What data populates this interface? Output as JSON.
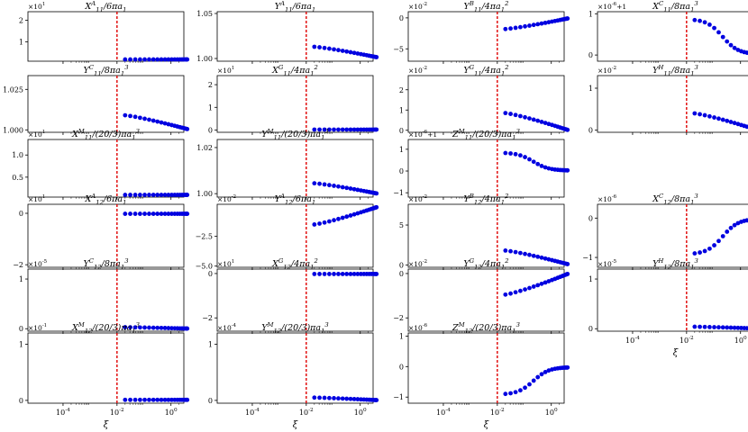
{
  "figure": {
    "xlabel": "ξ",
    "x_ticklabels": [
      "10^{-4}",
      "10^{-2}",
      "10^{0}"
    ],
    "x_tick_values": [
      0.0001,
      0.01,
      1
    ],
    "xlim": [
      5e-06,
      3
    ],
    "x_scale": "log",
    "vline": {
      "x": 0.01,
      "color": "#e00000",
      "style": "dashed"
    },
    "marker_color": "#0000e0"
  },
  "chart_data": [
    {
      "type": "scatter",
      "id": "XA11",
      "title": "X^{A}_{11}/6πa_{1}",
      "multiplier": "×10^{1}",
      "ylim": [
        0.1,
        2.4
      ],
      "yticks": [
        [
          1,
          "1"
        ],
        [
          2,
          "2"
        ]
      ],
      "shape": "flat",
      "level": 0.18,
      "x": [
        0.02,
        4
      ]
    },
    {
      "type": "scatter",
      "id": "YA11",
      "title": "Y^{A}_{11}/6πa_{1}",
      "multiplier": "",
      "ylim": [
        0.997,
        1.052
      ],
      "yticks": [
        [
          1.0,
          "1.00"
        ],
        [
          1.05,
          "1.05"
        ]
      ],
      "shape": "dec",
      "y0": 1.013,
      "y1": 1.0015,
      "x": [
        0.02,
        4
      ]
    },
    {
      "type": "scatter",
      "id": "YB11",
      "title": "Y^{B}_{11}/4πa_{1}^{2}",
      "multiplier": "×10^{-2}",
      "ylim": [
        -7,
        1
      ],
      "yticks": [
        [
          -5,
          "−5"
        ],
        [
          0,
          "0"
        ]
      ],
      "shape": "inc",
      "y0": -1.8,
      "y1": -0.1,
      "x": [
        0.02,
        4
      ]
    },
    {
      "type": "scatter",
      "id": "XC11",
      "title": "X^{C}_{11}/8πa_{1}^{3}",
      "multiplier": "×10^{-6}+1",
      "ylim": [
        -0.15,
        1.05
      ],
      "yticks": [
        [
          0,
          "0"
        ],
        [
          1,
          "1"
        ]
      ],
      "shape": "sig",
      "y0": 0.87,
      "y1": 0.02,
      "x": [
        0.02,
        4
      ]
    },
    {
      "type": "scatter",
      "id": "YC11",
      "title": "Y^{C}_{11}/8πa_{1}^{3}",
      "multiplier": "",
      "ylim": [
        0.9985,
        1.0335
      ],
      "yticks": [
        [
          1.0,
          "1.000"
        ],
        [
          1.025,
          "1.025"
        ]
      ],
      "shape": "dec",
      "y0": 1.009,
      "y1": 1.0005,
      "x": [
        0.02,
        4
      ]
    },
    {
      "type": "scatter",
      "id": "XG11",
      "title": "X^{G}_{11}/4πa_{1}^{2}",
      "multiplier": "×10^{1}",
      "ylim": [
        -0.1,
        2.4
      ],
      "yticks": [
        [
          0,
          "0"
        ],
        [
          1,
          "1"
        ],
        [
          2,
          "2"
        ]
      ],
      "shape": "flat",
      "level": 0.02,
      "x": [
        0.02,
        4
      ]
    },
    {
      "type": "scatter",
      "id": "YG11",
      "title": "Y^{G}_{11}/4πa_{1}^{2}",
      "multiplier": "×10^{-2}",
      "ylim": [
        -0.1,
        2.7
      ],
      "yticks": [
        [
          0,
          "0"
        ],
        [
          1,
          "1"
        ],
        [
          2,
          "2"
        ]
      ],
      "shape": "dec",
      "y0": 0.85,
      "y1": 0.02,
      "x": [
        0.02,
        4
      ]
    },
    {
      "type": "scatter",
      "id": "YH11",
      "title": "Y^{H}_{11}/8πa_{1}^{3}",
      "multiplier": "×10^{-2}",
      "ylim": [
        -0.05,
        1.3
      ],
      "yticks": [
        [
          0,
          "0"
        ],
        [
          1,
          "1"
        ]
      ],
      "shape": "dec",
      "y0": 0.4,
      "y1": 0.01,
      "x": [
        0.02,
        4
      ]
    },
    {
      "type": "scatter",
      "id": "XM11",
      "title": "X^{M}_{11}/(20/3)πa_{1}^{3}",
      "multiplier": "×10^{1}",
      "ylim": [
        0.05,
        1.35
      ],
      "yticks": [
        [
          0.5,
          "0.5"
        ],
        [
          1.0,
          "1.0"
        ]
      ],
      "shape": "flat",
      "level": 0.1,
      "x": [
        0.02,
        4
      ]
    },
    {
      "type": "scatter",
      "id": "YM11",
      "title": "Y^{M}_{11}/(20/3)πa_{1}^{3}",
      "multiplier": "",
      "ylim": [
        0.9985,
        1.0235
      ],
      "yticks": [
        [
          1.0,
          "1.00"
        ],
        [
          1.02,
          "1.02"
        ]
      ],
      "shape": "dec",
      "y0": 1.0045,
      "y1": 1.0001,
      "x": [
        0.02,
        4
      ]
    },
    {
      "type": "scatter",
      "id": "ZM11",
      "title": "Z^{M}_{11}/(20/3)πa_{1}^{3}",
      "multiplier": "×10^{-6}+1",
      "ylim": [
        -1.2,
        1.45
      ],
      "yticks": [
        [
          -1,
          "−1"
        ],
        [
          0,
          "0"
        ],
        [
          1,
          "1"
        ]
      ],
      "shape": "sig",
      "y0": 0.85,
      "y1": 0.02,
      "x": [
        0.02,
        4
      ]
    },
    {
      "type": "scatter",
      "id": "XA12",
      "title": "X^{A}_{12}/6πa_{1}",
      "multiplier": "×10^{1}",
      "ylim": [
        -2.1,
        0.35
      ],
      "yticks": [
        [
          -2,
          "−2"
        ],
        [
          0,
          "0"
        ]
      ],
      "shape": "flat",
      "level": -0.02,
      "x": [
        0.02,
        4
      ]
    },
    {
      "type": "scatter",
      "id": "YA12",
      "title": "Y^{A}_{12}/6πa_{1}",
      "multiplier": "×10^{-2}",
      "ylim": [
        -5.1,
        0.2
      ],
      "yticks": [
        [
          -5,
          "−5.0"
        ],
        [
          -2.5,
          "−2.5"
        ]
      ],
      "shape": "inc",
      "y0": -1.5,
      "y1": -0.05,
      "x": [
        0.02,
        4
      ]
    },
    {
      "type": "scatter",
      "id": "YB12",
      "title": "Y^{B}_{12}/4πa_{1}^{2}",
      "multiplier": "×10^{-2}",
      "ylim": [
        -0.3,
        7.6
      ],
      "yticks": [
        [
          0,
          "0"
        ],
        [
          5,
          "5"
        ]
      ],
      "shape": "dec",
      "y0": 1.8,
      "y1": 0.1,
      "x": [
        0.02,
        4
      ]
    },
    {
      "type": "scatter",
      "id": "XC12",
      "title": "X^{C}_{12}/8πa_{1}^{3}",
      "multiplier": "×10^{-6}",
      "ylim": [
        -1.25,
        0.35
      ],
      "yticks": [
        [
          -1,
          "−1"
        ],
        [
          0,
          "0"
        ]
      ],
      "shape": "sig",
      "y0": -0.92,
      "y1": -0.02,
      "x": [
        0.02,
        4
      ]
    },
    {
      "type": "scatter",
      "id": "YC12",
      "title": "Y^{C}_{12}/8πa_{1}^{3}",
      "multiplier": "×10^{-5}",
      "ylim": [
        -0.05,
        1.2
      ],
      "yticks": [
        [
          0,
          "0"
        ],
        [
          1,
          "1"
        ]
      ],
      "shape": "dec",
      "y0": 0.03,
      "y1": 0.003,
      "x": [
        0.02,
        4
      ]
    },
    {
      "type": "scatter",
      "id": "XG12",
      "title": "X^{G}_{12}/4πa_{1}^{2}",
      "multiplier": "×10^{1}",
      "ylim": [
        -2.6,
        0.2
      ],
      "yticks": [
        [
          -2,
          "−2"
        ],
        [
          0,
          "0"
        ]
      ],
      "shape": "flat",
      "level": -0.02,
      "x": [
        0.02,
        4
      ]
    },
    {
      "type": "scatter",
      "id": "YG12",
      "title": "Y^{G}_{12}/4πa_{1}^{2}",
      "multiplier": "×10^{-2}",
      "ylim": [
        -2.6,
        0.2
      ],
      "yticks": [
        [
          -2,
          "−2"
        ],
        [
          0,
          "0"
        ]
      ],
      "shape": "inc",
      "y0": -0.95,
      "y1": -0.02,
      "x": [
        0.02,
        4
      ]
    },
    {
      "type": "scatter",
      "id": "YH12",
      "title": "Y^{H}_{12}/8πa_{1}^{3}",
      "multiplier": "×10^{-5}",
      "ylim": [
        -0.05,
        1.2
      ],
      "yticks": [
        [
          0,
          "0"
        ],
        [
          1,
          "1"
        ]
      ],
      "shape": "dec",
      "y0": 0.04,
      "y1": 0.004,
      "x": [
        0.02,
        4
      ]
    },
    {
      "type": "scatter",
      "id": "XM12",
      "title": "X^{M}_{12}/(20/3)πa_{1}^{3}",
      "multiplier": "×10^{-1}",
      "ylim": [
        -0.05,
        1.2
      ],
      "yticks": [
        [
          0,
          "0"
        ],
        [
          1,
          "1"
        ]
      ],
      "shape": "flat",
      "level": 0.01,
      "x": [
        0.02,
        4
      ]
    },
    {
      "type": "scatter",
      "id": "YM12",
      "title": "Y^{M}_{12}/(20/3)πa_{1}^{3}",
      "multiplier": "×10^{-4}",
      "ylim": [
        -0.05,
        1.2
      ],
      "yticks": [
        [
          0,
          "0"
        ],
        [
          1,
          "1"
        ]
      ],
      "shape": "dec",
      "y0": 0.05,
      "y1": 0.005,
      "x": [
        0.02,
        4
      ]
    },
    {
      "type": "scatter",
      "id": "ZM12",
      "title": "Z^{M}_{12}/(20/3)πa_{1}^{3}",
      "multiplier": "×10^{-6}",
      "ylim": [
        -1.2,
        1.1
      ],
      "yticks": [
        [
          -1,
          "−1"
        ],
        [
          0,
          "0"
        ],
        [
          1,
          "1"
        ]
      ],
      "shape": "sig",
      "y0": -0.92,
      "y1": -0.02,
      "x": [
        0.02,
        4
      ]
    }
  ]
}
